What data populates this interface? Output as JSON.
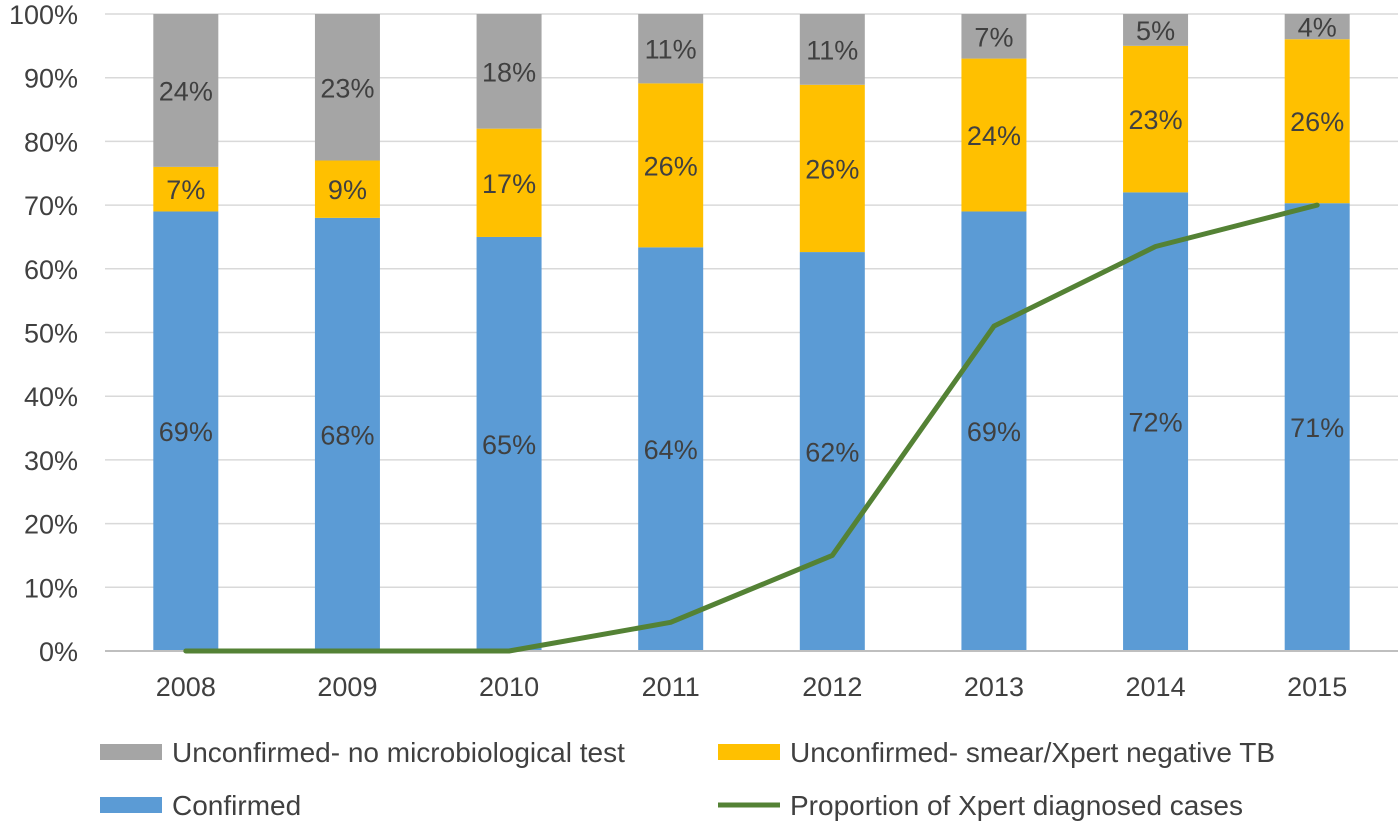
{
  "chart_data": {
    "type": "bar",
    "stacked": true,
    "percent_stacked": true,
    "categories": [
      "2008",
      "2009",
      "2010",
      "2011",
      "2012",
      "2013",
      "2014",
      "2015"
    ],
    "series": [
      {
        "key": "confirmed",
        "name": "Confirmed",
        "color": "#5B9BD5",
        "values": [
          69,
          68,
          65,
          64,
          62,
          69,
          72,
          71
        ],
        "labels": [
          "69%",
          "68%",
          "65%",
          "64%",
          "62%",
          "69%",
          "72%",
          "71%"
        ]
      },
      {
        "key": "smear_negative",
        "name": "Unconfirmed- smear/Xpert negative TB",
        "color": "#FFC000",
        "values": [
          7,
          9,
          17,
          26,
          26,
          24,
          23,
          26
        ],
        "labels": [
          "7%",
          "9%",
          "17%",
          "26%",
          "26%",
          "24%",
          "23%",
          "26%"
        ]
      },
      {
        "key": "no_test",
        "name": "Unconfirmed- no microbiological test",
        "color": "#A5A5A5",
        "values": [
          24,
          23,
          18,
          11,
          11,
          7,
          5,
          4
        ],
        "labels": [
          "24%",
          "23%",
          "18%",
          "11%",
          "11%",
          "7%",
          "5%",
          "4%"
        ]
      }
    ],
    "line_series": {
      "key": "xpert",
      "name": "Proportion of Xpert diagnosed cases",
      "color": "#548235",
      "values": [
        0,
        0,
        0,
        4.5,
        15,
        51,
        63.5,
        70
      ]
    },
    "y_ticks": [
      "0%",
      "10%",
      "20%",
      "30%",
      "40%",
      "50%",
      "60%",
      "70%",
      "80%",
      "90%",
      "100%"
    ],
    "ylim": [
      0,
      100
    ],
    "grid": true,
    "legend_position": "bottom",
    "title": "",
    "xlabel": "",
    "ylabel": ""
  }
}
